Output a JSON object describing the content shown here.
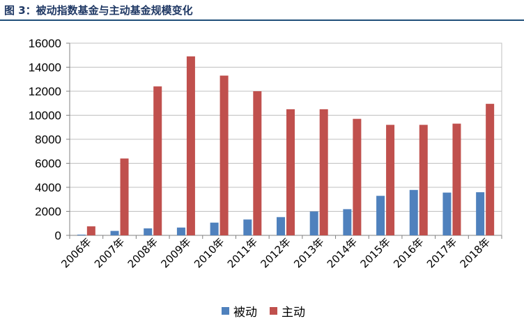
{
  "figure_title": "图 3：被动指数基金与主动基金规模变化",
  "chart_data": {
    "type": "bar",
    "categories": [
      "2006年",
      "2007年",
      "2008年",
      "2009年",
      "2010年",
      "2011年",
      "2012年",
      "2013年",
      "2014年",
      "2015年",
      "2016年",
      "2017年",
      "2018年"
    ],
    "series": [
      {
        "name": "被动",
        "color": "#4f81bd",
        "values": [
          60,
          370,
          580,
          650,
          1060,
          1320,
          1520,
          1990,
          2180,
          3290,
          3780,
          3560,
          3590
        ]
      },
      {
        "name": "主动",
        "color": "#c0504d",
        "values": [
          750,
          6400,
          12400,
          14900,
          13300,
          12000,
          10500,
          10500,
          9700,
          9200,
          9200,
          9300,
          10950
        ]
      }
    ],
    "ylim": [
      0,
      16000
    ],
    "yticks": [
      "0",
      "2000",
      "4000",
      "6000",
      "8000",
      "10000",
      "12000",
      "14000",
      "16000"
    ],
    "grid": true,
    "legend_position": "bottom"
  }
}
